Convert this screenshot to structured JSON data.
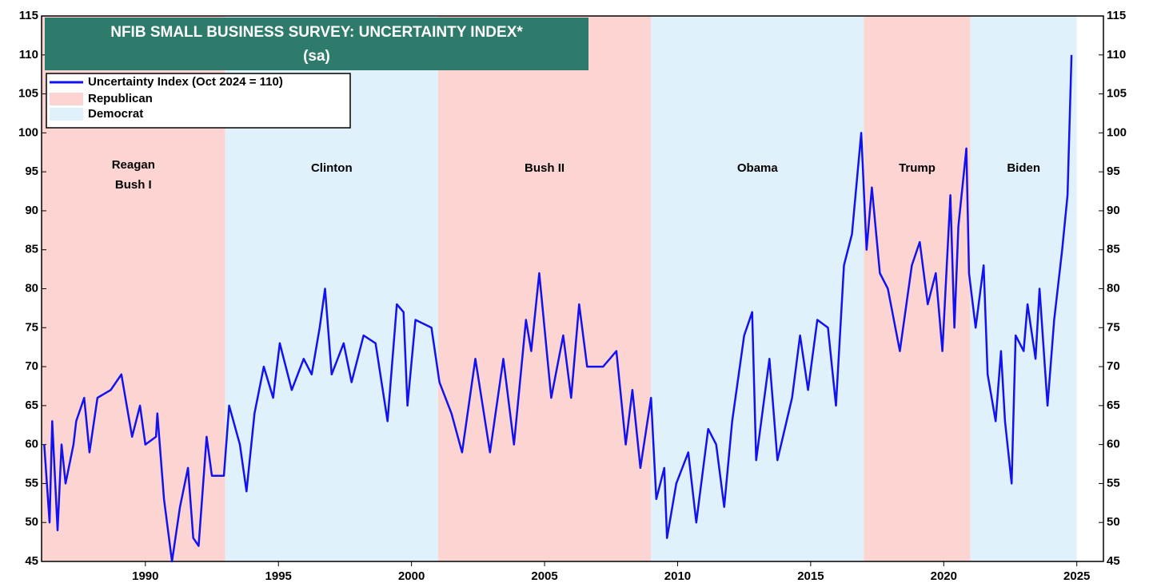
{
  "chart_data": {
    "type": "line",
    "title_lines": [
      "NFIB SMALL BUSINESS SURVEY: UNCERTAINTY INDEX*",
      "(sa)"
    ],
    "xlim": [
      1986.1,
      2026
    ],
    "xticks": [
      1990,
      1995,
      2000,
      2005,
      2010,
      2015,
      2020,
      2025
    ],
    "ylim": [
      45,
      115
    ],
    "yticks": [
      45,
      50,
      55,
      60,
      65,
      70,
      75,
      80,
      85,
      90,
      95,
      100,
      105,
      110,
      115
    ],
    "y2lim": [
      45,
      115
    ],
    "y2ticks": [
      45,
      50,
      55,
      60,
      65,
      70,
      75,
      80,
      85,
      90,
      95,
      100,
      105,
      110,
      115
    ],
    "legend": "top-left",
    "parties": [
      {
        "name": "Republican",
        "color": "#fcd5d3"
      },
      {
        "name": "Democrat",
        "color": "#e1f1fc"
      }
    ],
    "periods": [
      {
        "label_lines": [
          "Reagan",
          "Bush I"
        ],
        "party": 0,
        "start": 1986.1,
        "end": 1993
      },
      {
        "label_lines": [
          "Clinton"
        ],
        "party": 1,
        "start": 1993,
        "end": 2001
      },
      {
        "label_lines": [
          "Bush II"
        ],
        "party": 0,
        "start": 2001,
        "end": 2009
      },
      {
        "label_lines": [
          "Obama"
        ],
        "party": 1,
        "start": 2009,
        "end": 2017
      },
      {
        "label_lines": [
          "Trump"
        ],
        "party": 0,
        "start": 2017,
        "end": 2021
      },
      {
        "label_lines": [
          "Biden"
        ],
        "party": 1,
        "start": 2021,
        "end": 2025
      }
    ],
    "series": [
      {
        "name": "Uncertainty Index (Oct 2024 = 110)",
        "color": "#1212f0",
        "x": [
          1986.2,
          1986.4,
          1986.5,
          1986.7,
          1986.85,
          1987.0,
          1987.3,
          1987.4,
          1987.7,
          1987.9,
          1988.2,
          1988.7,
          1989.1,
          1989.5,
          1989.8,
          1990.0,
          1990.4,
          1990.45,
          1990.7,
          1991.0,
          1991.3,
          1991.6,
          1991.8,
          1992.0,
          1992.3,
          1992.5,
          1992.95,
          1993.15,
          1993.55,
          1993.8,
          1994.1,
          1994.45,
          1994.8,
          1995.05,
          1995.5,
          1995.95,
          1996.25,
          1996.55,
          1996.75,
          1997.0,
          1997.45,
          1997.75,
          1998.2,
          1998.65,
          1999.1,
          1999.45,
          1999.7,
          1999.85,
          2000.15,
          2000.75,
          2001.05,
          2001.5,
          2001.9,
          2002.4,
          2002.95,
          2003.45,
          2003.85,
          2004.3,
          2004.5,
          2004.8,
          2005.25,
          2005.7,
          2006.0,
          2006.3,
          2006.6,
          2007.2,
          2007.7,
          2008.05,
          2008.3,
          2008.6,
          2009.0,
          2009.2,
          2009.5,
          2009.6,
          2009.95,
          2010.4,
          2010.7,
          2011.15,
          2011.45,
          2011.75,
          2012.05,
          2012.5,
          2012.8,
          2012.95,
          2013.45,
          2013.75,
          2014.3,
          2014.6,
          2014.9,
          2015.25,
          2015.65,
          2015.95,
          2016.25,
          2016.55,
          2016.9,
          2017.1,
          2017.3,
          2017.6,
          2017.9,
          2018.35,
          2018.8,
          2019.1,
          2019.4,
          2019.7,
          2019.95,
          2020.25,
          2020.4,
          2020.55,
          2020.85,
          2020.95,
          2021.2,
          2021.5,
          2021.65,
          2021.95,
          2022.15,
          2022.3,
          2022.55,
          2022.7,
          2023.0,
          2023.15,
          2023.45,
          2023.6,
          2023.9,
          2024.15,
          2024.45,
          2024.65,
          2024.8
        ],
        "values": [
          60,
          50,
          63,
          49,
          60,
          55,
          60,
          63,
          66,
          59,
          66,
          67,
          69,
          61,
          65,
          60,
          61,
          64,
          53,
          45,
          52,
          57,
          48,
          47,
          61,
          56,
          56,
          65,
          60,
          54,
          64,
          70,
          66,
          73,
          67,
          71,
          69,
          75,
          80,
          69,
          73,
          68,
          74,
          73,
          63,
          78,
          77,
          65,
          76,
          75,
          68,
          64,
          59,
          71,
          59,
          71,
          60,
          76,
          72,
          82,
          66,
          74,
          66,
          78,
          70,
          70,
          72,
          60,
          67,
          57,
          66,
          53,
          57,
          48,
          55,
          59,
          50,
          62,
          60,
          52,
          63,
          74,
          77,
          58,
          71,
          58,
          66,
          74,
          67,
          76,
          75,
          65,
          83,
          87,
          100,
          85,
          93,
          82,
          80,
          72,
          83,
          86,
          78,
          82,
          72,
          92,
          75,
          88,
          98,
          82,
          75,
          83,
          69,
          63,
          72,
          63,
          55,
          74,
          72,
          78,
          71,
          80,
          65,
          76,
          85,
          92,
          110
        ]
      }
    ]
  }
}
